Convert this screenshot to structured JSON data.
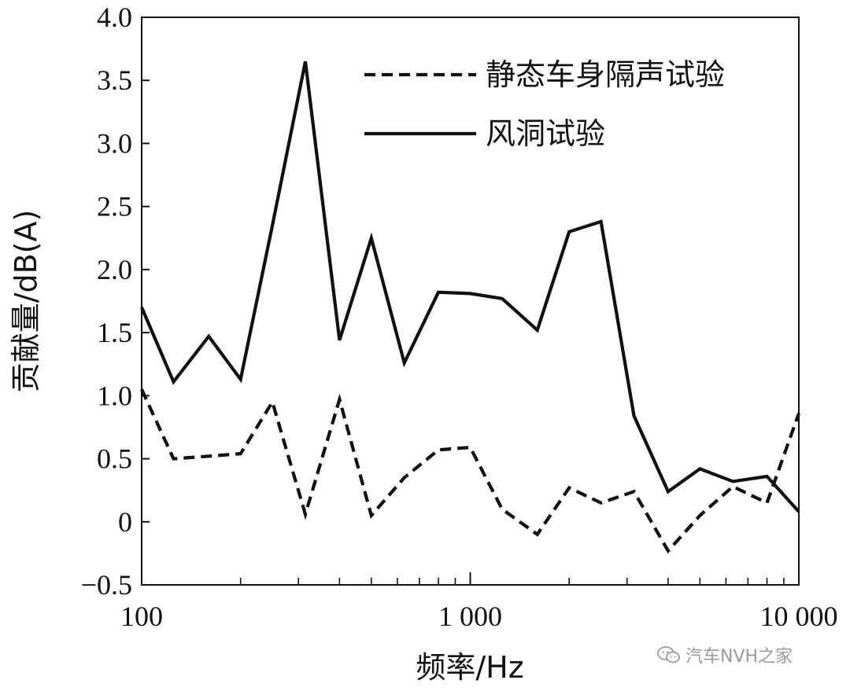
{
  "chart_data": {
    "type": "line",
    "xlabel": "频率/Hz",
    "ylabel": "贡献量/dB(A)",
    "xscale": "log",
    "xlim": [
      100,
      10000
    ],
    "ylim": [
      -0.5,
      4.0
    ],
    "yticks": [
      -0.5,
      0,
      0.5,
      1.0,
      1.5,
      2.0,
      2.5,
      3.0,
      3.5,
      4.0
    ],
    "ytick_labels": [
      "−0.5",
      "0",
      "0.5",
      "1.0",
      "1.5",
      "2.0",
      "2.5",
      "3.0",
      "3.5",
      "4.0"
    ],
    "xticks": [
      100,
      1000,
      10000
    ],
    "xtick_labels": [
      "100",
      "1 000",
      "10 000"
    ],
    "x": [
      100,
      125,
      160,
      200,
      250,
      315,
      400,
      500,
      630,
      800,
      1000,
      1250,
      1600,
      2000,
      2500,
      3150,
      4000,
      5000,
      6300,
      8000,
      10000
    ],
    "series": [
      {
        "name": "静态车身隔声试验",
        "style": "dashed",
        "color": "#111111",
        "values": [
          1.05,
          0.5,
          0.52,
          0.54,
          0.95,
          0.06,
          0.97,
          0.05,
          0.35,
          0.57,
          0.59,
          0.1,
          -0.1,
          0.27,
          0.15,
          0.24,
          -0.23,
          0.05,
          0.28,
          0.15,
          0.86
        ]
      },
      {
        "name": "风洞试验",
        "style": "solid",
        "color": "#111111",
        "values": [
          1.7,
          1.11,
          1.47,
          1.13,
          2.35,
          3.65,
          1.44,
          2.25,
          1.26,
          1.82,
          1.81,
          1.77,
          1.52,
          2.3,
          2.38,
          0.84,
          0.24,
          0.42,
          0.32,
          0.36,
          0.08
        ]
      }
    ],
    "legend": "top-right",
    "grid": false
  },
  "watermark": {
    "text": "汽车NVH之家",
    "icon": "wechat-icon"
  }
}
